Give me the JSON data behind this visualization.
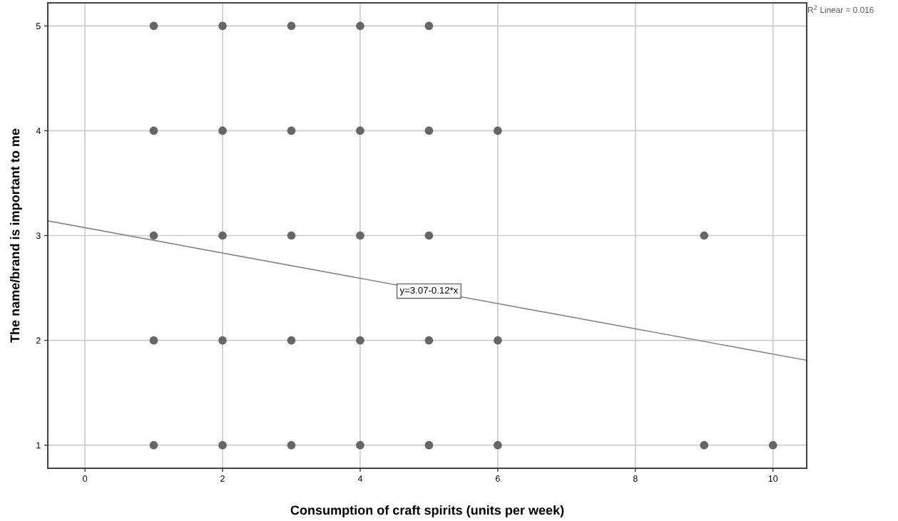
{
  "chart_data": {
    "type": "scatter",
    "xlabel": "Consumption of craft spirits (units per week)",
    "ylabel": "The name/brand is important to me",
    "xlim": [
      -0.54,
      10.49
    ],
    "ylim": [
      0.78,
      5.22
    ],
    "xticks": [
      0,
      2,
      4,
      6,
      8,
      10
    ],
    "yticks": [
      1,
      2,
      3,
      4,
      5
    ],
    "grid": true,
    "series": [
      {
        "color": "#666666",
        "marker": "circle",
        "x": [
          1,
          2,
          3,
          4,
          5,
          1,
          2,
          3,
          4,
          5,
          6,
          1,
          2,
          3,
          4,
          5,
          9,
          1,
          2,
          3,
          4,
          5,
          6,
          1,
          2,
          3,
          4,
          5,
          6,
          9,
          10
        ],
        "values": [
          5,
          5,
          5,
          5,
          5,
          4,
          4,
          4,
          4,
          4,
          4,
          3,
          3,
          3,
          3,
          3,
          3,
          2,
          2,
          2,
          2,
          2,
          2,
          1,
          1,
          1,
          1,
          1,
          1,
          1,
          1
        ]
      },
      {
        "type": "line",
        "color": "#888888",
        "x": [
          -0.54,
          10.49
        ],
        "values": [
          3.14,
          1.81
        ]
      }
    ],
    "annotations": [
      {
        "text": "y=3.07-0.12*x",
        "x": 5,
        "y": 2.47
      },
      "R$^{2}$ Linear = 0.016"
    ]
  }
}
